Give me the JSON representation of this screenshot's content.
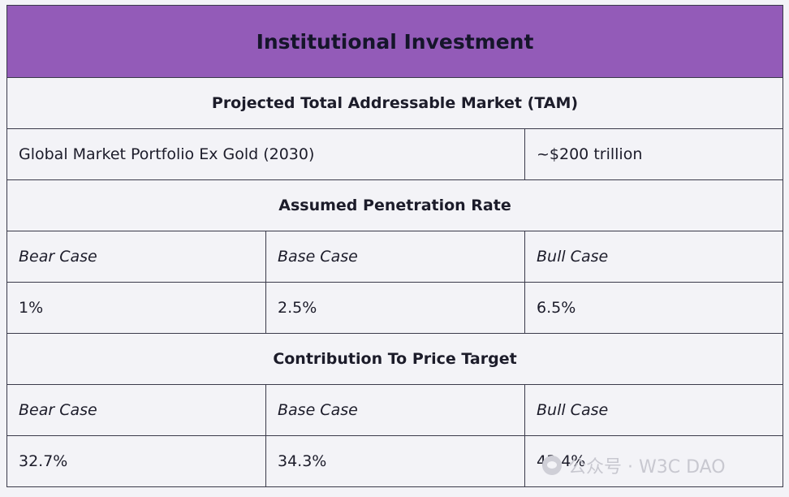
{
  "title": "Institutional Investment",
  "tam": {
    "heading": "Projected Total Addressable Market (TAM)",
    "label": "Global Market Portfolio Ex Gold (2030)",
    "value": "~$200 trillion"
  },
  "penetration": {
    "heading": "Assumed Penetration Rate",
    "cases": [
      "Bear Case",
      "Base Case",
      "Bull Case"
    ],
    "values": [
      "1%",
      "2.5%",
      "6.5%"
    ]
  },
  "contribution": {
    "heading": "Contribution To Price Target",
    "cases": [
      "Bear Case",
      "Base Case",
      "Bull Case"
    ],
    "values": [
      "32.7%",
      "34.3%",
      "43.4%"
    ]
  },
  "watermark": "公众号 · W3C DAO"
}
